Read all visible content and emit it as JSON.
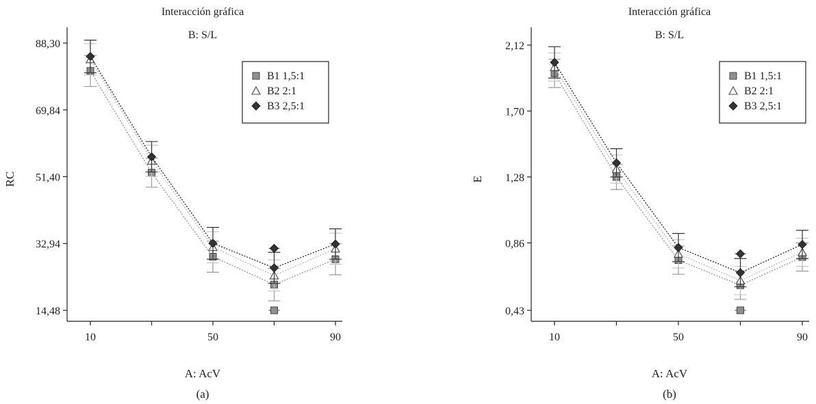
{
  "chart_data": [
    {
      "type": "line",
      "title": "Interacción gráfica",
      "subtitle": "B: S/L",
      "xlabel": "A: AcV",
      "ylabel": "RC",
      "caption": "(a)",
      "x_ticks": [
        "10",
        "50",
        "90"
      ],
      "y_ticks": [
        "14,48",
        "32,94",
        "51,40",
        "69,84",
        "88,30"
      ],
      "xlim": [
        5,
        95
      ],
      "ylim": [
        10,
        92
      ],
      "legend_position": "top-right",
      "x": [
        10,
        30,
        50,
        70,
        90
      ],
      "series": [
        {
          "name": "B1 1,5:1",
          "marker": "square",
          "color": "#8f8f8f",
          "line_color": "#9a9a9a",
          "values": [
            80.6,
            52.5,
            29.3,
            21.6,
            28.6
          ],
          "err": [
            4.3,
            4.0,
            4.3,
            4.5,
            4.3
          ],
          "extra_points": [
            {
              "x": 70,
              "y": 14.48
            }
          ]
        },
        {
          "name": "B2 2:1",
          "marker": "triangle",
          "color": "#ffffff",
          "line_color": "#bdbdbd",
          "values": [
            83.8,
            55.8,
            31.9,
            24.1,
            31.5
          ],
          "err": [
            4.3,
            4.3,
            4.3,
            4.3,
            4.3
          ],
          "extra_points": []
        },
        {
          "name": "B3 2,5:1",
          "marker": "diamond",
          "color": "#333333",
          "line_color": "#333333",
          "values": [
            84.6,
            56.9,
            33.0,
            26.2,
            32.8
          ],
          "err": [
            4.5,
            4.2,
            4.4,
            4.3,
            4.2
          ],
          "extra_points": [
            {
              "x": 70,
              "y": 31.6
            }
          ]
        }
      ]
    },
    {
      "type": "line",
      "title": "Interacción gráfica",
      "subtitle": "B: S/L",
      "xlabel": "A: AcV",
      "ylabel": "E",
      "caption": "(b)",
      "x_ticks": [
        "10",
        "50",
        "90"
      ],
      "y_ticks": [
        "0,43",
        "0,86",
        "1,28",
        "1,70",
        "2,12"
      ],
      "xlim": [
        5,
        95
      ],
      "ylim": [
        0.33,
        2.2
      ],
      "legend_position": "top-right",
      "x": [
        10,
        30,
        50,
        70,
        90
      ],
      "series": [
        {
          "name": "B1 1,5:1",
          "marker": "square",
          "color": "#8f8f8f",
          "line_color": "#9a9a9a",
          "values": [
            1.94,
            1.28,
            0.75,
            0.59,
            0.77
          ],
          "err": [
            0.09,
            0.08,
            0.09,
            0.09,
            0.09
          ],
          "extra_points": [
            {
              "x": 70,
              "y": 0.43
            }
          ]
        },
        {
          "name": "B2 2:1",
          "marker": "triangle",
          "color": "#ffffff",
          "line_color": "#bdbdbd",
          "values": [
            1.98,
            1.33,
            0.79,
            0.62,
            0.8
          ],
          "err": [
            0.09,
            0.09,
            0.09,
            0.09,
            0.09
          ],
          "extra_points": []
        },
        {
          "name": "B3 2,5:1",
          "marker": "diamond",
          "color": "#333333",
          "line_color": "#333333",
          "values": [
            2.01,
            1.37,
            0.83,
            0.67,
            0.85
          ],
          "err": [
            0.1,
            0.09,
            0.09,
            0.09,
            0.09
          ],
          "extra_points": [
            {
              "x": 70,
              "y": 0.79
            }
          ]
        }
      ]
    }
  ]
}
